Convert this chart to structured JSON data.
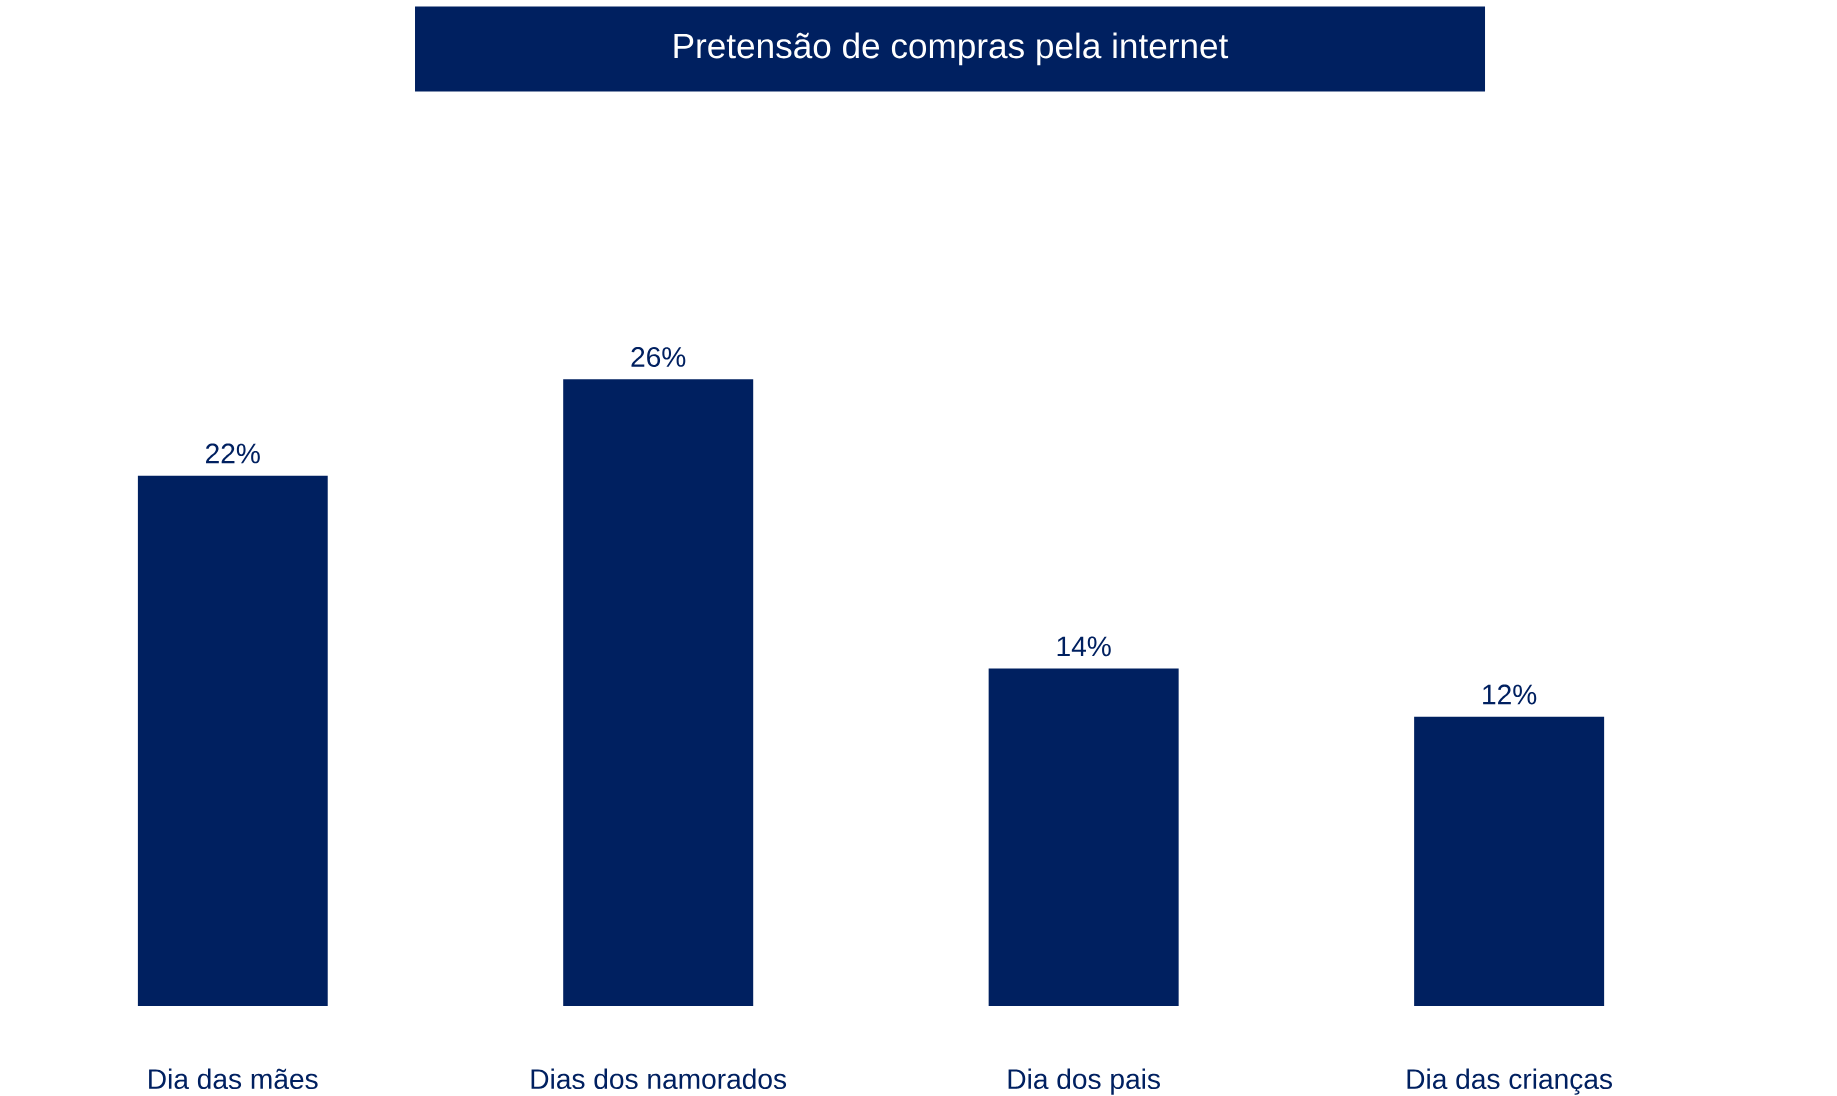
{
  "chart_data": {
    "type": "bar",
    "title": "Pretensão de compras pela internet",
    "categories": [
      "Dia das mães",
      "Dias dos namorados",
      "Dia dos pais",
      "Dia das crianças"
    ],
    "values": [
      22,
      26,
      14,
      12
    ],
    "value_labels": [
      "22%",
      "26%",
      "14%",
      "12%"
    ],
    "color": "#002060"
  }
}
